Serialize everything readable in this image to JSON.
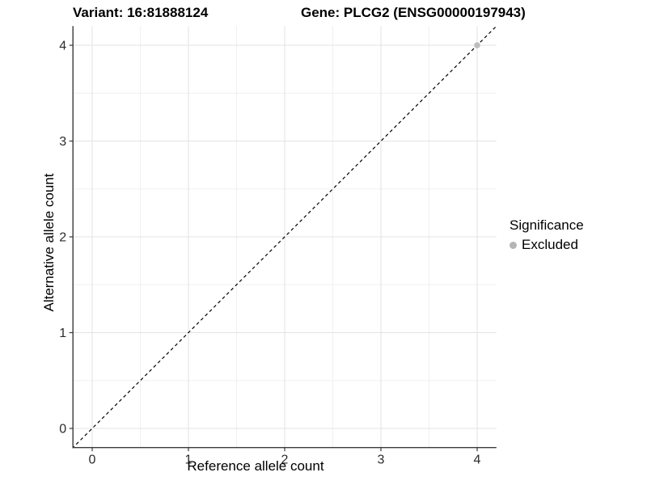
{
  "chart_data": {
    "type": "scatter",
    "title_left": "Variant: 16:81888124",
    "title_right": "Gene: PLCG2 (ENSG00000197943)",
    "xlabel": "Reference allele count",
    "ylabel": "Alternative allele count",
    "xlim": [
      -0.2,
      4.2
    ],
    "ylim": [
      -0.2,
      4.2
    ],
    "x_ticks": [
      0,
      1,
      2,
      3,
      4
    ],
    "y_ticks": [
      0,
      1,
      2,
      3,
      4
    ],
    "x_minor_ticks": [
      0.5,
      1.5,
      2.5,
      3.5
    ],
    "y_minor_ticks": [
      0.5,
      1.5,
      2.5,
      3.5
    ],
    "grid": true,
    "reference_line": {
      "type": "abline",
      "slope": 1,
      "intercept": 0,
      "style": "dashed",
      "color": "#000000"
    },
    "series": [
      {
        "name": "Excluded",
        "color": "#bdbdbd",
        "points": [
          [
            4,
            4
          ]
        ]
      }
    ],
    "legend": {
      "position": "right",
      "title": "Significance",
      "items": [
        {
          "label": "Excluded",
          "color": "#b5b5b5"
        }
      ]
    },
    "colors": {
      "background": "#ffffff",
      "grid_major": "#e3e3e3",
      "grid_minor": "#f0f0f0",
      "axis_line": "#3a3a3a",
      "tick_label": "#2b2b2b",
      "point": "#bdbdbd"
    }
  }
}
